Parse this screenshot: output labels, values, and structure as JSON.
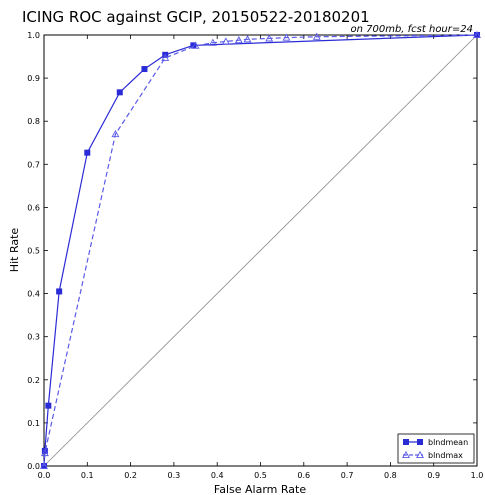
{
  "chart_data": {
    "type": "line",
    "title": "ICING ROC against GCIP, 20150522-20180201",
    "subtitle": "on 700mb, fcst hour=24",
    "xlabel": "False Alarm Rate",
    "ylabel": "Hit Rate",
    "xlim": [
      0.0,
      1.0
    ],
    "ylim": [
      0.0,
      1.0
    ],
    "xticks": [
      "0.0",
      "0.1",
      "0.2",
      "0.3",
      "0.4",
      "0.5",
      "0.6",
      "0.7",
      "0.8",
      "0.9",
      "1.0"
    ],
    "yticks": [
      "0.0",
      "0.1",
      "0.2",
      "0.3",
      "0.4",
      "0.5",
      "0.6",
      "0.7",
      "0.8",
      "0.9",
      "1.0"
    ],
    "grid": false,
    "legend_position": "bottom-right",
    "reference_line": {
      "x": [
        0,
        1
      ],
      "y": [
        0,
        1
      ],
      "color": "#888888"
    },
    "series": [
      {
        "name": "blndmean",
        "style": "solid",
        "marker": "square",
        "color": "#2b2bd6",
        "x": [
          0.0,
          0.002,
          0.01,
          0.035,
          0.1,
          0.175,
          0.232,
          0.28,
          0.345,
          1.0
        ],
        "y": [
          0.0,
          0.035,
          0.14,
          0.405,
          0.727,
          0.867,
          0.921,
          0.954,
          0.976,
          1.0
        ]
      },
      {
        "name": "blndmax",
        "style": "dashed",
        "marker": "triangle",
        "color": "#5a5ae8",
        "x": [
          0.0,
          0.002,
          0.165,
          0.28,
          0.35,
          0.39,
          0.42,
          0.45,
          0.47,
          0.52,
          0.56,
          0.63,
          1.0
        ],
        "y": [
          0.0,
          0.03,
          0.77,
          0.947,
          0.975,
          0.982,
          0.985,
          0.988,
          0.99,
          0.992,
          0.994,
          0.996,
          1.0
        ]
      }
    ]
  }
}
